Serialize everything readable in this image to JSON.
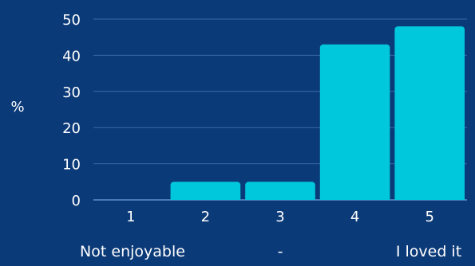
{
  "theme": {
    "background": "#0b3a78",
    "bar_color": "#00c8dc",
    "text_color": "#ffffff",
    "grid_color": "#3c6aa8",
    "baseline_color": "#6fa0d8"
  },
  "chart_data": {
    "type": "bar",
    "categories": [
      "1",
      "2",
      "3",
      "4",
      "5"
    ],
    "values": [
      0,
      5,
      5,
      43,
      48
    ],
    "title": "",
    "xlabel": "",
    "ylabel": "%",
    "ylim": [
      0,
      50
    ],
    "yticks": [
      0,
      10,
      20,
      30,
      40,
      50
    ],
    "grid": true,
    "scale_labels": {
      "left": "Not enjoyable",
      "middle": "-",
      "right": "I loved it"
    }
  }
}
